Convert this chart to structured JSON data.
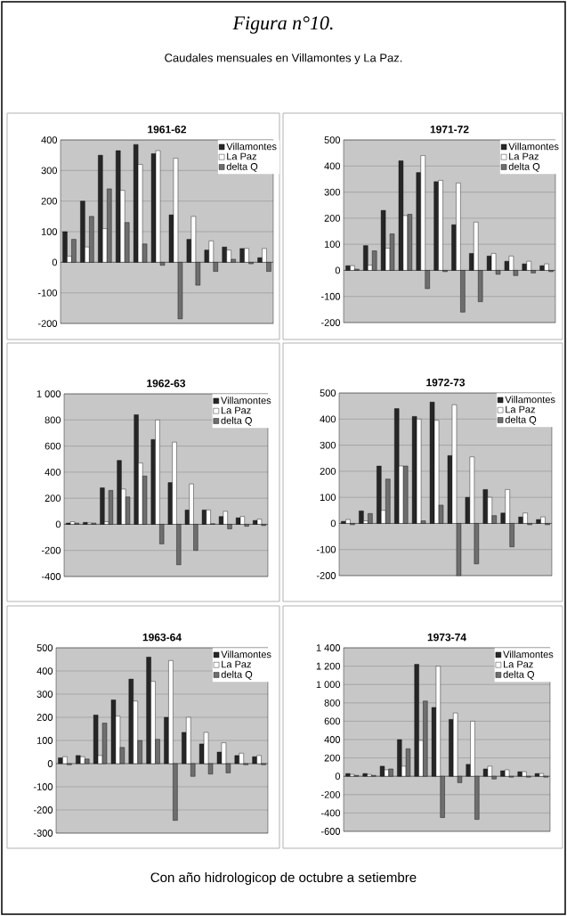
{
  "chart_data": [
    {
      "type": "other",
      "title": "*Figura n°10.*",
      "subtitle": "Caudales mensuales en Villamontes y La Paz.",
      "annotations": [
        "Con año hidrologicop de octubre a setiembre"
      ]
    },
    {
      "type": "bar",
      "title": "1961-62",
      "categories": [
        null,
        null,
        null,
        null,
        null,
        null,
        null,
        null,
        null,
        null,
        null,
        null
      ],
      "series": [
        {
          "name": "Villamontes",
          "color": "#262626",
          "values": [
            100,
            200,
            350,
            365,
            385,
            355,
            155,
            75,
            40,
            50,
            45,
            15
          ]
        },
        {
          "name": "La Paz",
          "color": "#ffffff",
          "values": [
            20,
            50,
            110,
            235,
            320,
            365,
            340,
            150,
            70,
            40,
            45,
            45
          ]
        },
        {
          "name": "delta Q",
          "color": "#6e6e6e",
          "values": [
            75,
            150,
            240,
            130,
            60,
            -10,
            -185,
            -75,
            -30,
            10,
            -5,
            -30
          ]
        }
      ],
      "ylim": [
        -200,
        400
      ],
      "yticks": [
        -200,
        -100,
        0,
        100,
        200,
        300,
        400
      ],
      "grid": "y",
      "legend": "top right",
      "tick_labels": "y"
    },
    {
      "type": "bar",
      "title": "1971-72",
      "categories": [
        null,
        null,
        null,
        null,
        null,
        null,
        null,
        null,
        null,
        null,
        null,
        null
      ],
      "series": [
        {
          "name": "Villamontes",
          "color": "#262626",
          "values": [
            18,
            95,
            230,
            420,
            375,
            340,
            175,
            65,
            55,
            35,
            25,
            18
          ]
        },
        {
          "name": "La Paz",
          "color": "#ffffff",
          "values": [
            18,
            20,
            85,
            210,
            440,
            345,
            335,
            185,
            65,
            55,
            35,
            25
          ]
        },
        {
          "name": "delta Q",
          "color": "#6e6e6e",
          "values": [
            5,
            75,
            140,
            215,
            -70,
            -5,
            -160,
            -120,
            -15,
            -20,
            -10,
            -5
          ]
        }
      ],
      "ylim": [
        -200,
        500
      ],
      "yticks": [
        -200,
        -100,
        0,
        100,
        200,
        300,
        400,
        500
      ],
      "grid": "y",
      "legend": "top right",
      "tick_labels": "y"
    },
    {
      "type": "bar",
      "title": "1962-63",
      "categories": [
        null,
        null,
        null,
        null,
        null,
        null,
        null,
        null,
        null,
        null,
        null,
        null
      ],
      "series": [
        {
          "name": "Villamontes",
          "color": "#262626",
          "values": [
            10,
            15,
            280,
            490,
            840,
            650,
            320,
            110,
            110,
            60,
            50,
            30
          ]
        },
        {
          "name": "La Paz",
          "color": "#ffffff",
          "values": [
            20,
            10,
            20,
            270,
            470,
            800,
            630,
            310,
            110,
            100,
            60,
            40
          ]
        },
        {
          "name": "delta Q",
          "color": "#6e6e6e",
          "values": [
            10,
            10,
            260,
            210,
            370,
            -150,
            -310,
            -200,
            5,
            -35,
            -15,
            -10
          ]
        }
      ],
      "ylim": [
        -400,
        1000
      ],
      "yticks": [
        -400,
        -200,
        0,
        200,
        400,
        600,
        800,
        {
          "value": 1000,
          "label": "1 000"
        }
      ],
      "grid": "y",
      "legend": "top right",
      "tick_labels": "y"
    },
    {
      "type": "bar",
      "title": "1972-73",
      "categories": [
        null,
        null,
        null,
        null,
        null,
        null,
        null,
        null,
        null,
        null,
        null,
        null
      ],
      "series": [
        {
          "name": "Villamontes",
          "color": "#262626",
          "values": [
            8,
            48,
            220,
            440,
            410,
            465,
            260,
            100,
            130,
            40,
            25,
            15
          ]
        },
        {
          "name": "La Paz",
          "color": "#ffffff",
          "values": [
            15,
            10,
            50,
            220,
            400,
            395,
            455,
            255,
            100,
            130,
            40,
            25
          ]
        },
        {
          "name": "delta Q",
          "color": "#6e6e6e",
          "values": [
            -5,
            38,
            170,
            220,
            10,
            70,
            -200,
            -155,
            30,
            -90,
            -5,
            -5
          ]
        }
      ],
      "ylim": [
        -200,
        500
      ],
      "yticks": [
        -200,
        -100,
        0,
        100,
        200,
        300,
        400,
        500
      ],
      "grid": "y",
      "legend": "top right",
      "tick_labels": "y"
    },
    {
      "type": "bar",
      "title": "1963-64",
      "categories": [
        null,
        null,
        null,
        null,
        null,
        null,
        null,
        null,
        null,
        null,
        null,
        null
      ],
      "series": [
        {
          "name": "Villamontes",
          "color": "#262626",
          "values": [
            25,
            35,
            210,
            275,
            365,
            460,
            200,
            135,
            85,
            50,
            35,
            30
          ]
        },
        {
          "name": "La Paz",
          "color": "#ffffff",
          "values": [
            30,
            30,
            35,
            205,
            270,
            355,
            445,
            200,
            135,
            90,
            45,
            35
          ]
        },
        {
          "name": "delta Q",
          "color": "#6e6e6e",
          "values": [
            -5,
            20,
            175,
            70,
            100,
            105,
            -245,
            -55,
            -45,
            -40,
            -5,
            -5
          ]
        }
      ],
      "ylim": [
        -300,
        500
      ],
      "yticks": [
        -300,
        -200,
        -100,
        0,
        100,
        200,
        300,
        400,
        500
      ],
      "grid": "y",
      "legend": "top right",
      "tick_labels": "y"
    },
    {
      "type": "bar",
      "title": "1973-74",
      "categories": [
        null,
        null,
        null,
        null,
        null,
        null,
        null,
        null,
        null,
        null,
        null,
        null
      ],
      "series": [
        {
          "name": "Villamontes",
          "color": "#262626",
          "values": [
            30,
            30,
            110,
            400,
            1220,
            750,
            620,
            130,
            80,
            60,
            50,
            30
          ]
        },
        {
          "name": "La Paz",
          "color": "#ffffff",
          "values": [
            20,
            20,
            70,
            110,
            390,
            1200,
            690,
            600,
            110,
            70,
            50,
            30
          ]
        },
        {
          "name": "delta Q",
          "color": "#6e6e6e",
          "values": [
            10,
            10,
            80,
            300,
            820,
            -450,
            -70,
            -470,
            -30,
            -10,
            -10,
            -10
          ]
        }
      ],
      "ylim": [
        -600,
        1400
      ],
      "yticks": [
        -600,
        -400,
        -200,
        0,
        200,
        400,
        600,
        800,
        {
          "value": 1000,
          "label": "1 000"
        },
        {
          "value": 1200,
          "label": "1 200"
        },
        {
          "value": 1400,
          "label": "1 400"
        }
      ],
      "grid": "y",
      "legend": "top right",
      "tick_labels": "y"
    }
  ]
}
